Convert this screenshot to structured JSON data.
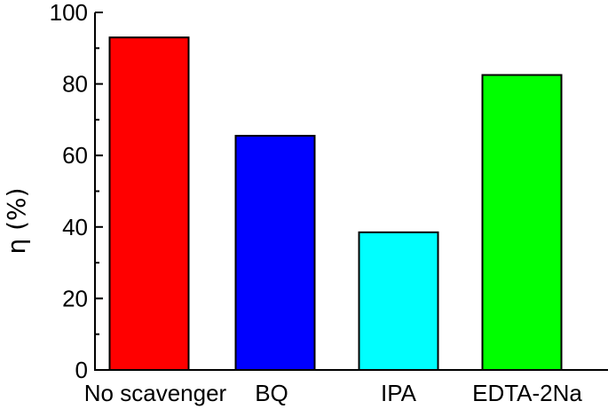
{
  "chart_data": {
    "type": "bar",
    "categories": [
      "No scavenger",
      "BQ",
      "IPA",
      "EDTA-2Na"
    ],
    "values": [
      93,
      65.5,
      38.5,
      82.5
    ],
    "colors": [
      "#ff0000",
      "#0000ff",
      "#00ffff",
      "#00ff00"
    ],
    "title": "",
    "xlabel": "",
    "ylabel": "η (%)",
    "ylim": [
      0,
      100
    ],
    "yticks": [
      0,
      20,
      40,
      60,
      80,
      100
    ],
    "ytick_labels": [
      "0",
      "20",
      "40",
      "60",
      "80",
      "100"
    ],
    "grid": false,
    "legend": "none"
  }
}
